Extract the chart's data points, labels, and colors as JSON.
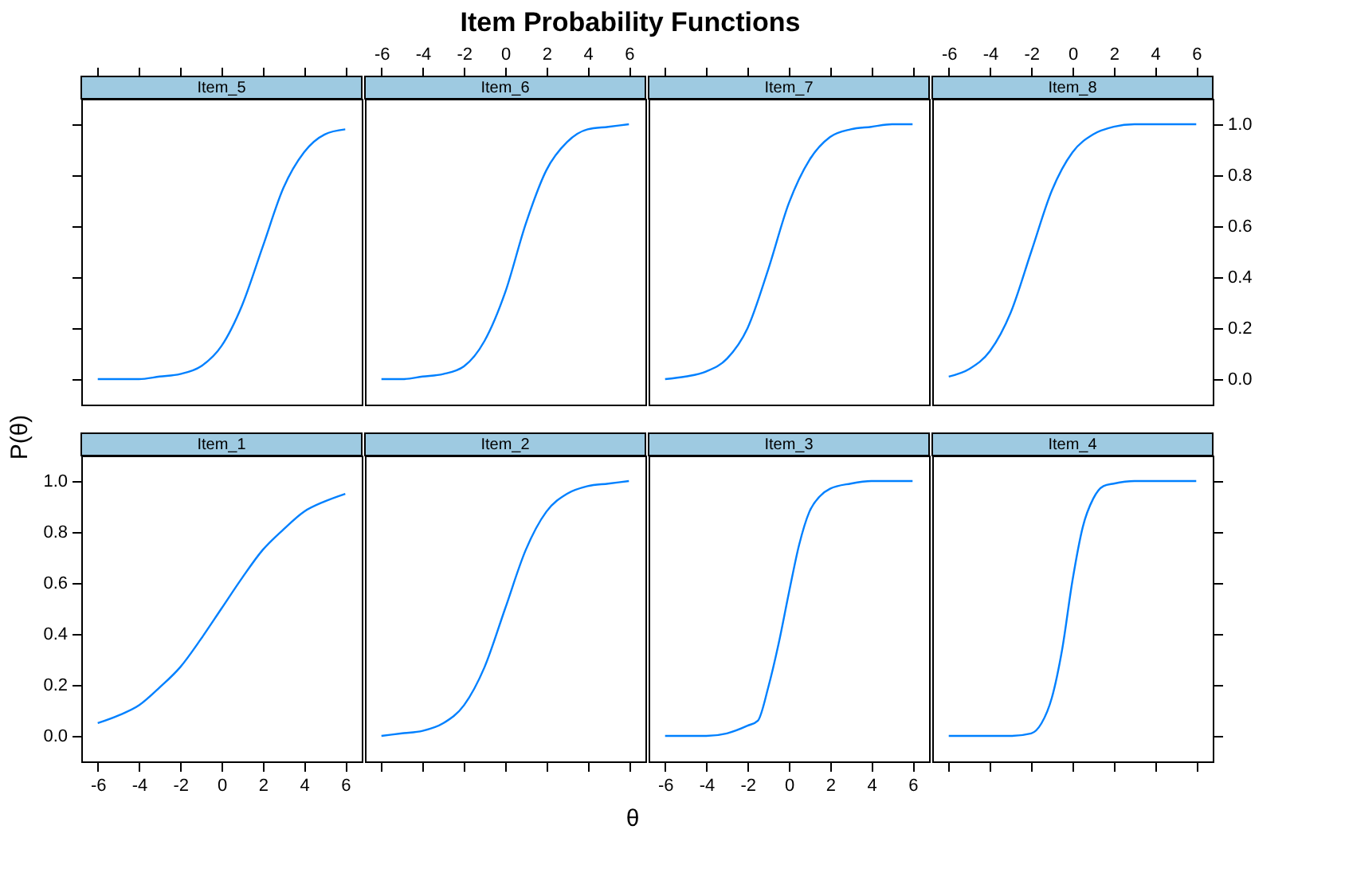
{
  "chart_data": [
    {
      "type": "line",
      "title": "Item_5",
      "annotations": [
        "Item Probability Functions",
        "θ",
        "P(θ)"
      ],
      "x": [
        -6,
        -5,
        -4,
        -3,
        -2,
        -1,
        0,
        1,
        2,
        3,
        4,
        5,
        6
      ],
      "series": [
        {
          "color": "#0080ff",
          "values": [
            0.0,
            0.0,
            0.0,
            0.01,
            0.02,
            0.05,
            0.13,
            0.29,
            0.52,
            0.75,
            0.89,
            0.96,
            0.98
          ]
        }
      ],
      "xlim": [
        -6.8,
        6.8
      ],
      "ylim": [
        -0.1,
        1.1
      ],
      "xticks": [
        -6,
        -4,
        -2,
        0,
        2,
        4,
        6
      ],
      "yticks": [
        {
          "value": 0,
          "label": null
        },
        {
          "value": 0.2,
          "label": null
        },
        {
          "value": 0.4,
          "label": null
        },
        {
          "value": 0.6,
          "label": null
        },
        {
          "value": 0.8,
          "label": null
        },
        {
          "value": 1,
          "label": null
        }
      ],
      "tick_labels": false
    },
    {
      "type": "line",
      "title": "Item_6",
      "x": [
        -6,
        -5,
        -4,
        -3,
        -2,
        -1,
        0,
        1,
        2,
        3,
        4,
        5,
        6
      ],
      "series": [
        {
          "color": "#0080ff",
          "values": [
            0.0,
            0.0,
            0.01,
            0.02,
            0.05,
            0.15,
            0.34,
            0.61,
            0.82,
            0.93,
            0.98,
            0.99,
            1.0
          ]
        }
      ],
      "xlim": [
        -6.8,
        6.8
      ],
      "ylim": [
        -0.1,
        1.1
      ],
      "xticks": [
        -6,
        -4,
        -2,
        0,
        2,
        4,
        6
      ],
      "tick_labels": "x"
    },
    {
      "type": "line",
      "title": "Item_7",
      "x": [
        -6,
        -5,
        -4,
        -3,
        -2,
        -1,
        0,
        1,
        2,
        3,
        4,
        5,
        6
      ],
      "series": [
        {
          "color": "#0080ff",
          "values": [
            0.0,
            0.01,
            0.03,
            0.08,
            0.2,
            0.43,
            0.69,
            0.86,
            0.95,
            0.98,
            0.99,
            1.0,
            1.0
          ]
        }
      ],
      "xlim": [
        -6.8,
        6.8
      ],
      "ylim": [
        -0.1,
        1.1
      ],
      "xticks": [
        -6,
        -4,
        -2,
        0,
        2,
        4,
        6
      ],
      "tick_labels": false
    },
    {
      "type": "line",
      "title": "Item_8",
      "x": [
        -6,
        -5,
        -4,
        -3,
        -2,
        -1,
        0,
        1,
        2,
        3,
        4,
        5,
        6
      ],
      "series": [
        {
          "color": "#0080ff",
          "values": [
            0.01,
            0.04,
            0.11,
            0.26,
            0.5,
            0.74,
            0.89,
            0.96,
            0.99,
            1.0,
            1.0,
            1.0,
            1.0
          ]
        }
      ],
      "xlim": [
        -6.8,
        6.8
      ],
      "ylim": [
        -0.1,
        1.1
      ],
      "xticks": [
        -6,
        -4,
        -2,
        0,
        2,
        4,
        6
      ],
      "yticks": [
        {
          "value": 0,
          "label": "0.0"
        },
        {
          "value": 0.2,
          "label": "0.2"
        },
        {
          "value": 0.4,
          "label": "0.4"
        },
        {
          "value": 0.6,
          "label": "0.6"
        },
        {
          "value": 0.8,
          "label": "0.8"
        },
        {
          "value": 1,
          "label": "1.0"
        }
      ]
    },
    {
      "type": "line",
      "title": "Item_1",
      "x": [
        -6,
        -5,
        -4,
        -3,
        -2,
        -1,
        0,
        1,
        2,
        3,
        4,
        5,
        6
      ],
      "series": [
        {
          "color": "#0080ff",
          "values": [
            0.05,
            0.08,
            0.12,
            0.19,
            0.27,
            0.38,
            0.5,
            0.62,
            0.73,
            0.81,
            0.88,
            0.92,
            0.95
          ]
        }
      ],
      "xlim": [
        -6.8,
        6.8
      ],
      "ylim": [
        -0.1,
        1.1
      ],
      "xticks": [
        -6,
        -4,
        -2,
        0,
        2,
        4,
        6
      ],
      "yticks": [
        {
          "value": 0,
          "label": "0.0"
        },
        {
          "value": 0.2,
          "label": "0.2"
        },
        {
          "value": 0.4,
          "label": "0.4"
        },
        {
          "value": 0.6,
          "label": "0.6"
        },
        {
          "value": 0.8,
          "label": "0.8"
        },
        {
          "value": 1,
          "label": "1.0"
        }
      ]
    },
    {
      "type": "line",
      "title": "Item_2",
      "x": [
        -6,
        -5,
        -4,
        -3,
        -2,
        -1,
        0,
        1,
        2,
        3,
        4,
        5,
        6
      ],
      "series": [
        {
          "color": "#0080ff",
          "values": [
            0.0,
            0.01,
            0.02,
            0.05,
            0.12,
            0.27,
            0.5,
            0.73,
            0.88,
            0.95,
            0.98,
            0.99,
            1.0
          ]
        }
      ],
      "xlim": [
        -6.8,
        6.8
      ],
      "ylim": [
        -0.1,
        1.1
      ],
      "xticks": [
        -6,
        -4,
        -2,
        0,
        2,
        4,
        6
      ],
      "tick_labels": false
    },
    {
      "type": "line",
      "title": "Item_3",
      "x": [
        -6,
        -5,
        -4,
        -3,
        -2,
        -1.5,
        -1,
        -0.5,
        0,
        0.5,
        1,
        1.5,
        2,
        3,
        4,
        5,
        6
      ],
      "series": [
        {
          "color": "#0080ff",
          "values": [
            0.0,
            0.0,
            0.0,
            0.01,
            0.04,
            0.06,
            0.19,
            0.36,
            0.56,
            0.75,
            0.88,
            0.94,
            0.97,
            0.99,
            1.0,
            1.0,
            1.0
          ]
        }
      ],
      "xlim": [
        -6.8,
        6.8
      ],
      "ylim": [
        -0.1,
        1.1
      ],
      "xticks": [
        -6,
        -4,
        -2,
        0,
        2,
        4,
        6
      ],
      "tick_labels": "x"
    },
    {
      "type": "line",
      "title": "Item_4",
      "x": [
        -6,
        -5,
        -4,
        -3,
        -2,
        -1.5,
        -1,
        -0.5,
        0,
        0.5,
        1,
        1.5,
        2,
        3,
        4,
        5,
        6
      ],
      "series": [
        {
          "color": "#0080ff",
          "values": [
            0.0,
            0.0,
            0.0,
            0.0,
            0.01,
            0.05,
            0.15,
            0.34,
            0.61,
            0.82,
            0.93,
            0.98,
            0.99,
            1.0,
            1.0,
            1.0,
            1.0
          ]
        }
      ],
      "xlim": [
        -6.8,
        6.8
      ],
      "ylim": [
        -0.1,
        1.1
      ],
      "xticks": [
        -6,
        -4,
        -2,
        0,
        2,
        4,
        6
      ],
      "yticks": [
        {
          "value": 0,
          "label": null
        },
        {
          "value": 0.2,
          "label": null
        },
        {
          "value": 0.4,
          "label": null
        },
        {
          "value": 0.6,
          "label": null
        },
        {
          "value": 0.8,
          "label": null
        },
        {
          "value": 1,
          "label": null
        }
      ],
      "tick_labels": false
    }
  ]
}
